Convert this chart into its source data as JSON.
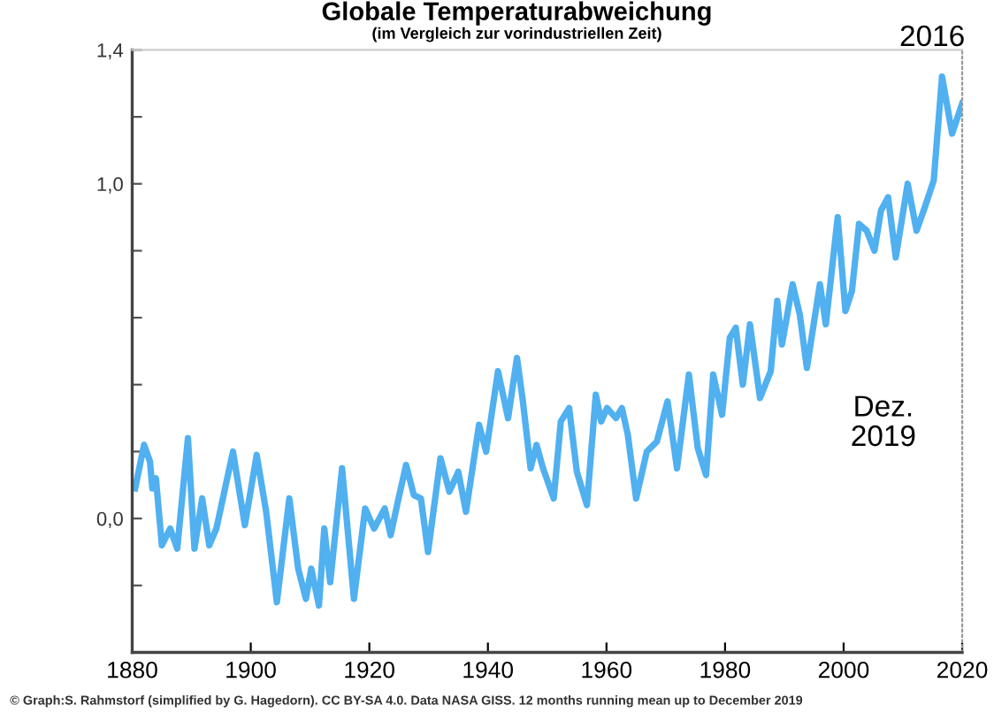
{
  "chart_data": {
    "type": "line",
    "title": "Globale Temperaturabweichung",
    "subtitle": "(im Vergleich zur vorindustriellen Zeit)",
    "annotations": [
      {
        "text": "2016",
        "x": 2016.6,
        "y": 1.32
      },
      "Dez.\n2019",
      "© Graph:S. Rahmstorf (simplified by G. Hagedorn). CC BY-SA 4.0. Data NASA GISS. 12 months running mean up to December 2019"
    ],
    "xlim": [
      1880,
      2020
    ],
    "xticks": [
      1880,
      1900,
      1920,
      1940,
      1960,
      1980,
      2000,
      2020
    ],
    "ylim": [
      -0.4,
      1.4
    ],
    "yticks": [
      {
        "value": -0.2,
        "label": null
      },
      {
        "value": 0,
        "label": "0,0"
      },
      {
        "value": 0.2,
        "label": null
      },
      {
        "value": 0.4,
        "label": null
      },
      {
        "value": 0.6,
        "label": null
      },
      {
        "value": 0.8,
        "label": null
      },
      {
        "value": 1.0,
        "label": "1,0"
      },
      {
        "value": 1.2,
        "label": null
      },
      {
        "value": 1.4,
        "label": "1,4"
      }
    ],
    "grid": false,
    "legend": false,
    "marker": "none",
    "line_style": "solid",
    "series": [
      {
        "x": [
          1880.5,
          1882,
          1883,
          1883.4,
          1884,
          1885,
          1886.4,
          1887.6,
          1889.4,
          1890.5,
          1891.8,
          1893,
          1894.2,
          1897,
          1899,
          1901,
          1902.6,
          1904.4,
          1906.5,
          1908,
          1909.3,
          1910.2,
          1911.5,
          1912.4,
          1913.4,
          1915.4,
          1917.4,
          1919.3,
          1920.8,
          1922.6,
          1923.6,
          1924.8,
          1926.2,
          1927.5,
          1928.7,
          1929.9,
          1932,
          1933.5,
          1935,
          1936.3,
          1938.5,
          1939.7,
          1941.7,
          1943.4,
          1944.9,
          1945.9,
          1947.2,
          1948.2,
          1949.3,
          1951.1,
          1952.3,
          1953.7,
          1955,
          1956.7,
          1958.2,
          1959.1,
          1960.1,
          1961.6,
          1962.6,
          1963.6,
          1965,
          1966.8,
          1968.5,
          1970.3,
          1971.9,
          1973.9,
          1975.4,
          1976.8,
          1978,
          1979.5,
          1980.8,
          1981.8,
          1983,
          1984.2,
          1985.9,
          1987.7,
          1988.8,
          1989.6,
          1991.4,
          1992.6,
          1993.8,
          1996,
          1997,
          1999,
          2000.3,
          2001.4,
          2002.6,
          2003.9,
          2005.2,
          2006.3,
          2007.5,
          2008.8,
          2010.8,
          2012.3,
          2013.7,
          2015.2,
          2016.6,
          2018.3,
          2020
        ],
        "values": [
          0.09,
          0.22,
          0.17,
          0.09,
          0.12,
          -0.08,
          -0.03,
          -0.09,
          0.24,
          -0.09,
          0.06,
          -0.08,
          -0.03,
          0.2,
          -0.02,
          0.19,
          0.02,
          -0.25,
          0.06,
          -0.15,
          -0.24,
          -0.15,
          -0.26,
          -0.03,
          -0.19,
          0.15,
          -0.24,
          0.03,
          -0.03,
          0.03,
          -0.05,
          0.05,
          0.16,
          0.07,
          0.06,
          -0.1,
          0.18,
          0.08,
          0.14,
          0.02,
          0.28,
          0.2,
          0.44,
          0.3,
          0.48,
          0.35,
          0.15,
          0.22,
          0.15,
          0.06,
          0.29,
          0.33,
          0.14,
          0.04,
          0.37,
          0.29,
          0.33,
          0.3,
          0.33,
          0.25,
          0.06,
          0.2,
          0.23,
          0.35,
          0.15,
          0.43,
          0.21,
          0.13,
          0.43,
          0.31,
          0.54,
          0.57,
          0.4,
          0.58,
          0.36,
          0.44,
          0.65,
          0.52,
          0.7,
          0.61,
          0.45,
          0.7,
          0.58,
          0.9,
          0.62,
          0.68,
          0.88,
          0.86,
          0.8,
          0.92,
          0.96,
          0.78,
          1.0,
          0.86,
          0.93,
          1.01,
          1.32,
          1.15,
          1.24
        ],
        "color": "#50b0f0"
      }
    ]
  }
}
